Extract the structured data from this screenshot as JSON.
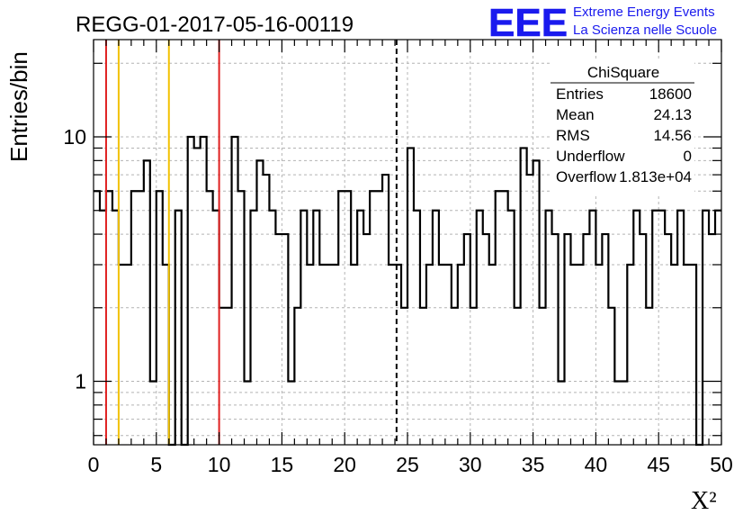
{
  "title": "REGG-01-2017-05-16-00119",
  "logo": {
    "text": "EEE",
    "line1": "Extreme Energy Events",
    "line2": "La Scienza nelle Scuole",
    "color": "#1a1aee"
  },
  "stats_box": {
    "title": "ChiSquare",
    "rows": [
      {
        "label": "Entries",
        "value": "18600"
      },
      {
        "label": "Mean",
        "value": "24.13"
      },
      {
        "label": "RMS",
        "value": "14.56"
      },
      {
        "label": "Underflow",
        "value": "0"
      },
      {
        "label": "Overflow",
        "value": "1.813e+04"
      }
    ]
  },
  "chart_data": {
    "type": "histogram",
    "title": "REGG-01-2017-05-16-00119",
    "xlabel": "X²",
    "ylabel": "Entries/bin",
    "xlim": [
      0,
      50
    ],
    "ylim": [
      0.55,
      25
    ],
    "yscale": "log",
    "grid": true,
    "bin_width": 0.5,
    "x_ticks": [
      0,
      5,
      10,
      15,
      20,
      25,
      30,
      35,
      40,
      45,
      50
    ],
    "y_ticks": [
      1,
      10
    ],
    "values": [
      6,
      5,
      6,
      5,
      3,
      3,
      6,
      6,
      8,
      1,
      6,
      3,
      0,
      5,
      0,
      10,
      9,
      10,
      6,
      5,
      2,
      2,
      10,
      6,
      1,
      5,
      8,
      7,
      5,
      4,
      4,
      1,
      2,
      5,
      3,
      5,
      3,
      3,
      3,
      6,
      6,
      3,
      5,
      4,
      6,
      6,
      7,
      3,
      3,
      2,
      9,
      5,
      2,
      3,
      5,
      3,
      3,
      2,
      3,
      4,
      2,
      5,
      4,
      3,
      6,
      6,
      5,
      2,
      9,
      7,
      8,
      2,
      5,
      4,
      1,
      4,
      3,
      3,
      4,
      5,
      3,
      4,
      2,
      1,
      1,
      3,
      5,
      4,
      2,
      5,
      5,
      4,
      3,
      5,
      3,
      3,
      0,
      5,
      4,
      5
    ],
    "vertical_lines": [
      {
        "x": 1.0,
        "color": "#e02020",
        "style": "solid"
      },
      {
        "x": 2.0,
        "color": "#f2c200",
        "style": "solid"
      },
      {
        "x": 6.0,
        "color": "#f2c200",
        "style": "solid"
      },
      {
        "x": 10.0,
        "color": "#e02020",
        "style": "solid"
      },
      {
        "x": 24.13,
        "color": "#000000",
        "style": "dashed"
      }
    ]
  }
}
